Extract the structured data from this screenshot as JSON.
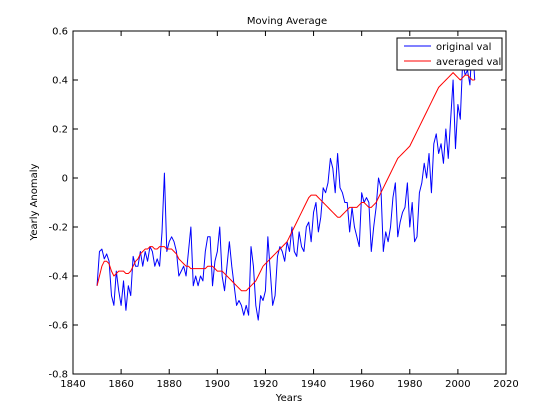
{
  "chart_data": {
    "type": "line",
    "title": "Moving Average",
    "xlabel": "Years",
    "ylabel": "Yearly Anomaly",
    "xlim": [
      1840,
      2020
    ],
    "ylim": [
      -0.8,
      0.6
    ],
    "grid": false,
    "legend": {
      "position": "top-right"
    },
    "x_ticks": [
      "1840",
      "1860",
      "1880",
      "1900",
      "1920",
      "1940",
      "1960",
      "1980",
      "2000",
      "2020"
    ],
    "y_ticks": [
      "-0.8",
      "-0.6",
      "-0.4",
      "-0.2",
      "0",
      "0.2",
      "0.4",
      "0.6"
    ],
    "x_tick_values": [
      1840,
      1860,
      1880,
      1900,
      1920,
      1940,
      1960,
      1980,
      2000,
      2020
    ],
    "y_tick_values": [
      -0.8,
      -0.6,
      -0.4,
      -0.2,
      0,
      0.2,
      0.4,
      0.6
    ],
    "series": [
      {
        "name": "original val",
        "color": "#0000ff",
        "x_start": 1850,
        "x_step": 1,
        "values": [
          -0.44,
          -0.3,
          -0.29,
          -0.33,
          -0.31,
          -0.34,
          -0.48,
          -0.52,
          -0.38,
          -0.46,
          -0.52,
          -0.42,
          -0.54,
          -0.44,
          -0.48,
          -0.32,
          -0.36,
          -0.36,
          -0.3,
          -0.36,
          -0.3,
          -0.34,
          -0.28,
          -0.3,
          -0.36,
          -0.33,
          -0.36,
          -0.22,
          0.02,
          -0.3,
          -0.26,
          -0.24,
          -0.26,
          -0.3,
          -0.4,
          -0.38,
          -0.36,
          -0.4,
          -0.3,
          -0.2,
          -0.44,
          -0.4,
          -0.44,
          -0.4,
          -0.42,
          -0.3,
          -0.24,
          -0.24,
          -0.44,
          -0.34,
          -0.3,
          -0.2,
          -0.4,
          -0.46,
          -0.36,
          -0.26,
          -0.36,
          -0.44,
          -0.52,
          -0.5,
          -0.52,
          -0.56,
          -0.52,
          -0.56,
          -0.28,
          -0.36,
          -0.52,
          -0.58,
          -0.48,
          -0.5,
          -0.46,
          -0.24,
          -0.38,
          -0.52,
          -0.48,
          -0.32,
          -0.28,
          -0.3,
          -0.34,
          -0.26,
          -0.3,
          -0.2,
          -0.3,
          -0.32,
          -0.22,
          -0.28,
          -0.3,
          -0.2,
          -0.18,
          -0.26,
          -0.14,
          -0.1,
          -0.22,
          -0.16,
          -0.04,
          -0.06,
          -0.02,
          0.08,
          0.04,
          -0.06,
          0.1,
          -0.04,
          -0.06,
          -0.1,
          -0.1,
          -0.22,
          -0.12,
          -0.2,
          -0.24,
          -0.28,
          -0.06,
          -0.1,
          -0.08,
          -0.1,
          -0.3,
          -0.2,
          -0.12,
          0.0,
          -0.04,
          -0.3,
          -0.22,
          -0.26,
          -0.2,
          -0.08,
          -0.02,
          -0.24,
          -0.18,
          -0.14,
          -0.12,
          -0.02,
          -0.2,
          -0.1,
          -0.26,
          -0.24,
          -0.06,
          -0.02,
          0.06,
          0.0,
          0.1,
          -0.06,
          0.14,
          0.18,
          0.1,
          0.14,
          0.06,
          0.2,
          0.08,
          0.24,
          0.4,
          0.12,
          0.3,
          0.24,
          0.48,
          0.42,
          0.44,
          0.38,
          0.56,
          0.4
        ]
      },
      {
        "name": "averaged val",
        "color": "#ff0000",
        "x_start": 1850,
        "x_step": 1,
        "values": [
          -0.44,
          -0.4,
          -0.36,
          -0.34,
          -0.34,
          -0.35,
          -0.38,
          -0.4,
          -0.39,
          -0.38,
          -0.38,
          -0.38,
          -0.39,
          -0.39,
          -0.38,
          -0.36,
          -0.34,
          -0.33,
          -0.31,
          -0.3,
          -0.29,
          -0.29,
          -0.28,
          -0.28,
          -0.29,
          -0.29,
          -0.28,
          -0.28,
          -0.28,
          -0.29,
          -0.29,
          -0.29,
          -0.3,
          -0.31,
          -0.33,
          -0.34,
          -0.35,
          -0.36,
          -0.36,
          -0.37,
          -0.37,
          -0.37,
          -0.37,
          -0.37,
          -0.37,
          -0.37,
          -0.36,
          -0.36,
          -0.36,
          -0.37,
          -0.38,
          -0.38,
          -0.38,
          -0.39,
          -0.4,
          -0.41,
          -0.42,
          -0.43,
          -0.44,
          -0.45,
          -0.46,
          -0.46,
          -0.46,
          -0.45,
          -0.44,
          -0.43,
          -0.42,
          -0.4,
          -0.38,
          -0.36,
          -0.35,
          -0.34,
          -0.33,
          -0.32,
          -0.31,
          -0.3,
          -0.29,
          -0.28,
          -0.27,
          -0.26,
          -0.24,
          -0.22,
          -0.2,
          -0.18,
          -0.16,
          -0.14,
          -0.12,
          -0.1,
          -0.08,
          -0.07,
          -0.07,
          -0.07,
          -0.08,
          -0.09,
          -0.1,
          -0.11,
          -0.12,
          -0.13,
          -0.14,
          -0.15,
          -0.16,
          -0.16,
          -0.15,
          -0.14,
          -0.13,
          -0.12,
          -0.12,
          -0.12,
          -0.12,
          -0.11,
          -0.1,
          -0.1,
          -0.11,
          -0.12,
          -0.12,
          -0.11,
          -0.1,
          -0.08,
          -0.06,
          -0.04,
          -0.02,
          0.0,
          0.02,
          0.04,
          0.06,
          0.08,
          0.09,
          0.1,
          0.11,
          0.12,
          0.13,
          0.15,
          0.17,
          0.19,
          0.21,
          0.23,
          0.25,
          0.27,
          0.29,
          0.31,
          0.33,
          0.35,
          0.37,
          0.38,
          0.39,
          0.4,
          0.41,
          0.42,
          0.43,
          0.42,
          0.41,
          0.4,
          0.41,
          0.42,
          0.42,
          0.41,
          0.4,
          0.4
        ]
      }
    ]
  }
}
